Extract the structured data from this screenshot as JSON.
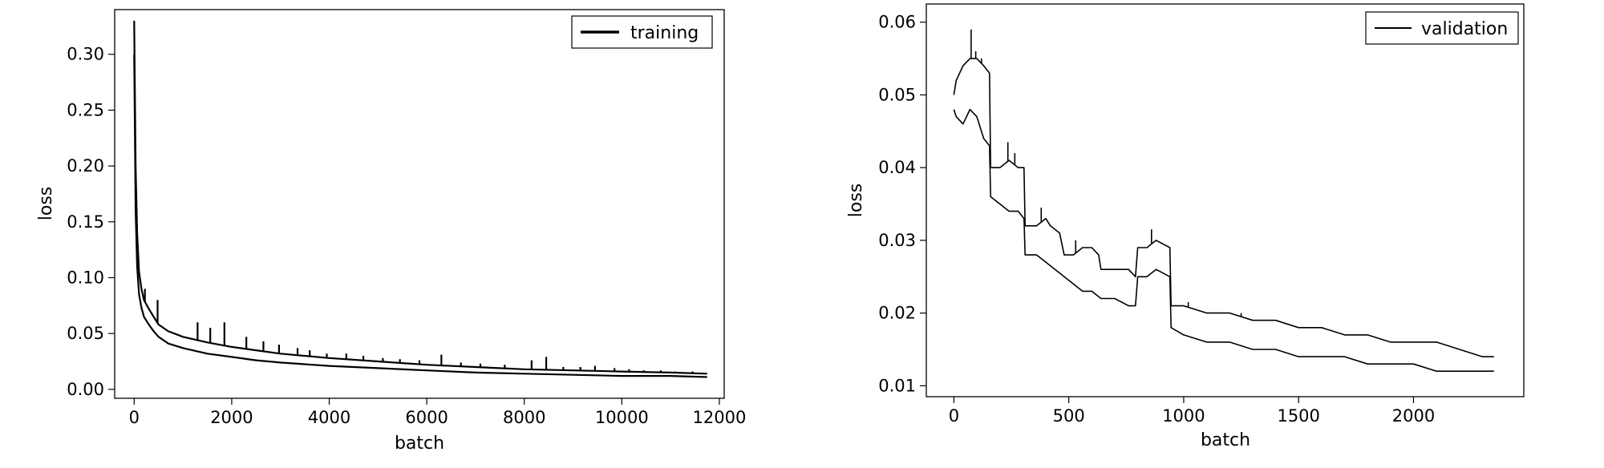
{
  "chart_data": [
    {
      "type": "line",
      "xlabel": "batch",
      "ylabel": "loss",
      "xlim": [
        -400,
        12100
      ],
      "ylim": [
        -0.008,
        0.34
      ],
      "xticks": [
        0,
        2000,
        4000,
        6000,
        8000,
        10000,
        12000
      ],
      "yticks": [
        0.0,
        0.05,
        0.1,
        0.15,
        0.2,
        0.25,
        0.3
      ],
      "xtick_labels": [
        "0",
        "2000",
        "4000",
        "6000",
        "8000",
        "10000",
        "12000"
      ],
      "ytick_labels": [
        "0.00",
        "0.05",
        "0.10",
        "0.15",
        "0.20",
        "0.25",
        "0.30"
      ],
      "legend": {
        "location": "top-right",
        "entries": [
          "training"
        ]
      },
      "grid": false,
      "series": [
        {
          "name": "training",
          "color": "#000000",
          "upper": {
            "x": [
              0,
              30,
              60,
              100,
              150,
              200,
              300,
              400,
              500,
              700,
              1000,
              1500,
              2000,
              2500,
              3000,
              4000,
              5000,
              6000,
              7000,
              8000,
              9000,
              10000,
              11000,
              11750
            ],
            "y": [
              0.33,
              0.2,
              0.14,
              0.105,
              0.09,
              0.08,
              0.072,
              0.065,
              0.058,
              0.052,
              0.047,
              0.042,
              0.038,
              0.035,
              0.032,
              0.028,
              0.025,
              0.022,
              0.02,
              0.018,
              0.017,
              0.016,
              0.015,
              0.014
            ]
          },
          "lower": {
            "x": [
              0,
              30,
              60,
              100,
              150,
              200,
              300,
              400,
              500,
              700,
              1000,
              1500,
              2000,
              2500,
              3000,
              4000,
              5000,
              6000,
              7000,
              8000,
              9000,
              10000,
              11000,
              11750
            ],
            "y": [
              0.3,
              0.16,
              0.11,
              0.085,
              0.073,
              0.065,
              0.058,
              0.052,
              0.047,
              0.041,
              0.037,
              0.032,
              0.029,
              0.026,
              0.024,
              0.021,
              0.019,
              0.017,
              0.015,
              0.014,
              0.013,
              0.012,
              0.012,
              0.011
            ]
          },
          "spikes": [
            {
              "x": 220,
              "y": 0.09
            },
            {
              "x": 480,
              "y": 0.08
            },
            {
              "x": 1300,
              "y": 0.06
            },
            {
              "x": 1560,
              "y": 0.055
            },
            {
              "x": 1850,
              "y": 0.06
            },
            {
              "x": 2300,
              "y": 0.047
            },
            {
              "x": 2650,
              "y": 0.043
            },
            {
              "x": 2970,
              "y": 0.04
            },
            {
              "x": 3350,
              "y": 0.037
            },
            {
              "x": 3600,
              "y": 0.035
            },
            {
              "x": 3950,
              "y": 0.032
            },
            {
              "x": 4350,
              "y": 0.032
            },
            {
              "x": 4700,
              "y": 0.03
            },
            {
              "x": 5100,
              "y": 0.028
            },
            {
              "x": 5450,
              "y": 0.027
            },
            {
              "x": 5850,
              "y": 0.026
            },
            {
              "x": 6300,
              "y": 0.031
            },
            {
              "x": 6700,
              "y": 0.024
            },
            {
              "x": 7100,
              "y": 0.023
            },
            {
              "x": 7600,
              "y": 0.022
            },
            {
              "x": 8150,
              "y": 0.026
            },
            {
              "x": 8450,
              "y": 0.029
            },
            {
              "x": 8800,
              "y": 0.02
            },
            {
              "x": 9150,
              "y": 0.02
            },
            {
              "x": 9450,
              "y": 0.021
            },
            {
              "x": 9850,
              "y": 0.019
            },
            {
              "x": 10150,
              "y": 0.018
            },
            {
              "x": 10450,
              "y": 0.017
            },
            {
              "x": 10800,
              "y": 0.017
            },
            {
              "x": 11100,
              "y": 0.016
            },
            {
              "x": 11450,
              "y": 0.016
            },
            {
              "x": 11650,
              "y": 0.015
            }
          ]
        }
      ]
    },
    {
      "type": "line",
      "xlabel": "batch",
      "ylabel": "loss",
      "xlim": [
        -120,
        2480
      ],
      "ylim": [
        0.0085,
        0.0625
      ],
      "xticks": [
        0,
        500,
        1000,
        1500,
        2000
      ],
      "yticks": [
        0.01,
        0.02,
        0.03,
        0.04,
        0.05,
        0.06
      ],
      "xtick_labels": [
        "0",
        "500",
        "1000",
        "1500",
        "2000"
      ],
      "ytick_labels": [
        "0.01",
        "0.02",
        "0.03",
        "0.04",
        "0.05",
        "0.06"
      ],
      "legend": {
        "location": "top-right",
        "entries": [
          "validation"
        ]
      },
      "grid": false,
      "series": [
        {
          "name": "validation",
          "color": "#000000",
          "upper": {
            "x": [
              0,
              10,
              40,
              70,
              100,
              130,
              155,
              160,
              200,
              240,
              280,
              305,
              310,
              360,
              400,
              420,
              460,
              480,
              520,
              560,
              600,
              630,
              640,
              680,
              760,
              790,
              800,
              840,
              880,
              940,
              945,
              1000,
              1100,
              1200,
              1300,
              1400,
              1500,
              1600,
              1700,
              1800,
              1900,
              2000,
              2100,
              2200,
              2300,
              2350
            ],
            "y": [
              0.05,
              0.052,
              0.054,
              0.055,
              0.055,
              0.054,
              0.053,
              0.04,
              0.04,
              0.041,
              0.04,
              0.04,
              0.032,
              0.032,
              0.033,
              0.032,
              0.031,
              0.028,
              0.028,
              0.029,
              0.029,
              0.028,
              0.026,
              0.026,
              0.026,
              0.025,
              0.029,
              0.029,
              0.03,
              0.029,
              0.021,
              0.021,
              0.02,
              0.02,
              0.019,
              0.019,
              0.018,
              0.018,
              0.017,
              0.017,
              0.016,
              0.016,
              0.016,
              0.015,
              0.014,
              0.014
            ]
          },
          "lower": {
            "x": [
              0,
              10,
              40,
              70,
              100,
              130,
              155,
              160,
              200,
              240,
              280,
              305,
              310,
              360,
              400,
              440,
              480,
              520,
              560,
              600,
              640,
              700,
              760,
              790,
              800,
              840,
              880,
              940,
              945,
              1000,
              1100,
              1200,
              1300,
              1400,
              1500,
              1600,
              1700,
              1800,
              1900,
              2000,
              2100,
              2200,
              2300,
              2350
            ],
            "y": [
              0.048,
              0.047,
              0.046,
              0.048,
              0.047,
              0.044,
              0.043,
              0.036,
              0.035,
              0.034,
              0.034,
              0.033,
              0.028,
              0.028,
              0.027,
              0.026,
              0.025,
              0.024,
              0.023,
              0.023,
              0.022,
              0.022,
              0.021,
              0.021,
              0.025,
              0.025,
              0.026,
              0.025,
              0.018,
              0.017,
              0.016,
              0.016,
              0.015,
              0.015,
              0.014,
              0.014,
              0.014,
              0.013,
              0.013,
              0.013,
              0.012,
              0.012,
              0.012,
              0.012
            ]
          },
          "spikes": [
            {
              "x": 75,
              "y": 0.059
            },
            {
              "x": 95,
              "y": 0.056
            },
            {
              "x": 120,
              "y": 0.055
            },
            {
              "x": 235,
              "y": 0.0435
            },
            {
              "x": 265,
              "y": 0.042
            },
            {
              "x": 380,
              "y": 0.0345
            },
            {
              "x": 530,
              "y": 0.03
            },
            {
              "x": 860,
              "y": 0.0315
            },
            {
              "x": 1020,
              "y": 0.0215
            },
            {
              "x": 1250,
              "y": 0.02
            },
            {
              "x": 1600,
              "y": 0.018
            }
          ]
        }
      ]
    }
  ]
}
